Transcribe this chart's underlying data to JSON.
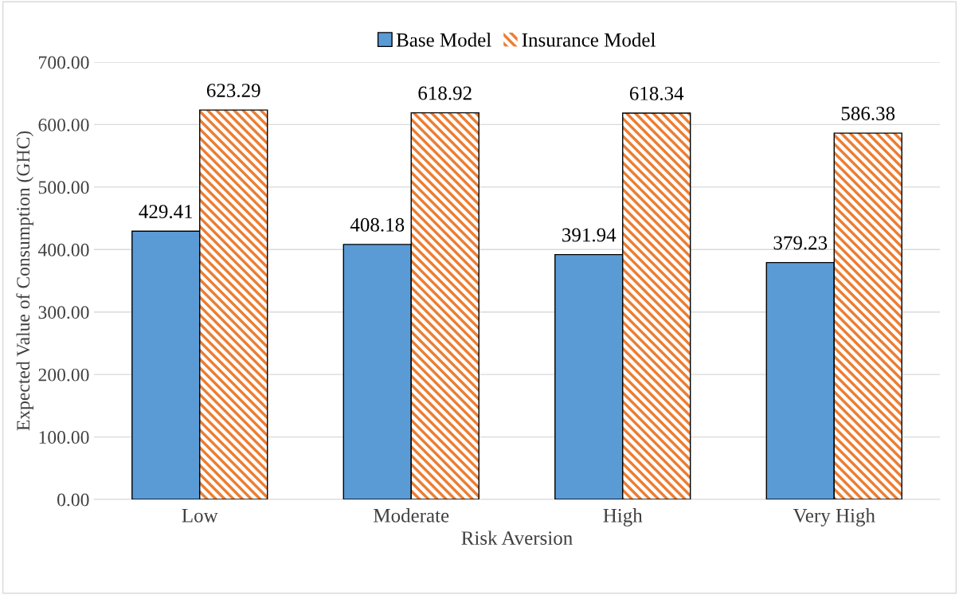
{
  "chart_data": {
    "type": "bar",
    "xlabel": "Risk Aversion",
    "ylabel": "Expected Value of Consumption (GHC)",
    "categories": [
      "Low",
      "Moderate",
      "High",
      "Very High"
    ],
    "series": [
      {
        "name": "Base Model",
        "color": "#5b9bd5",
        "values": [
          429.41,
          408.18,
          391.94,
          379.23
        ]
      },
      {
        "name": "Insurance Model",
        "color": "#ed7d31",
        "values": [
          623.29,
          618.92,
          618.34,
          586.38
        ]
      }
    ],
    "ylim": [
      0,
      700
    ],
    "yticks": [
      {
        "value": 0,
        "label": "0.00"
      },
      {
        "value": 100,
        "label": "100.00"
      },
      {
        "value": 200,
        "label": "200.00"
      },
      {
        "value": 300,
        "label": "300.00"
      },
      {
        "value": 400,
        "label": "400.00"
      },
      {
        "value": 500,
        "label": "500.00"
      },
      {
        "value": 600,
        "label": "600.00"
      },
      {
        "value": 700,
        "label": "700.00"
      }
    ],
    "grid": "y",
    "legend": "top",
    "data_labels": true
  }
}
